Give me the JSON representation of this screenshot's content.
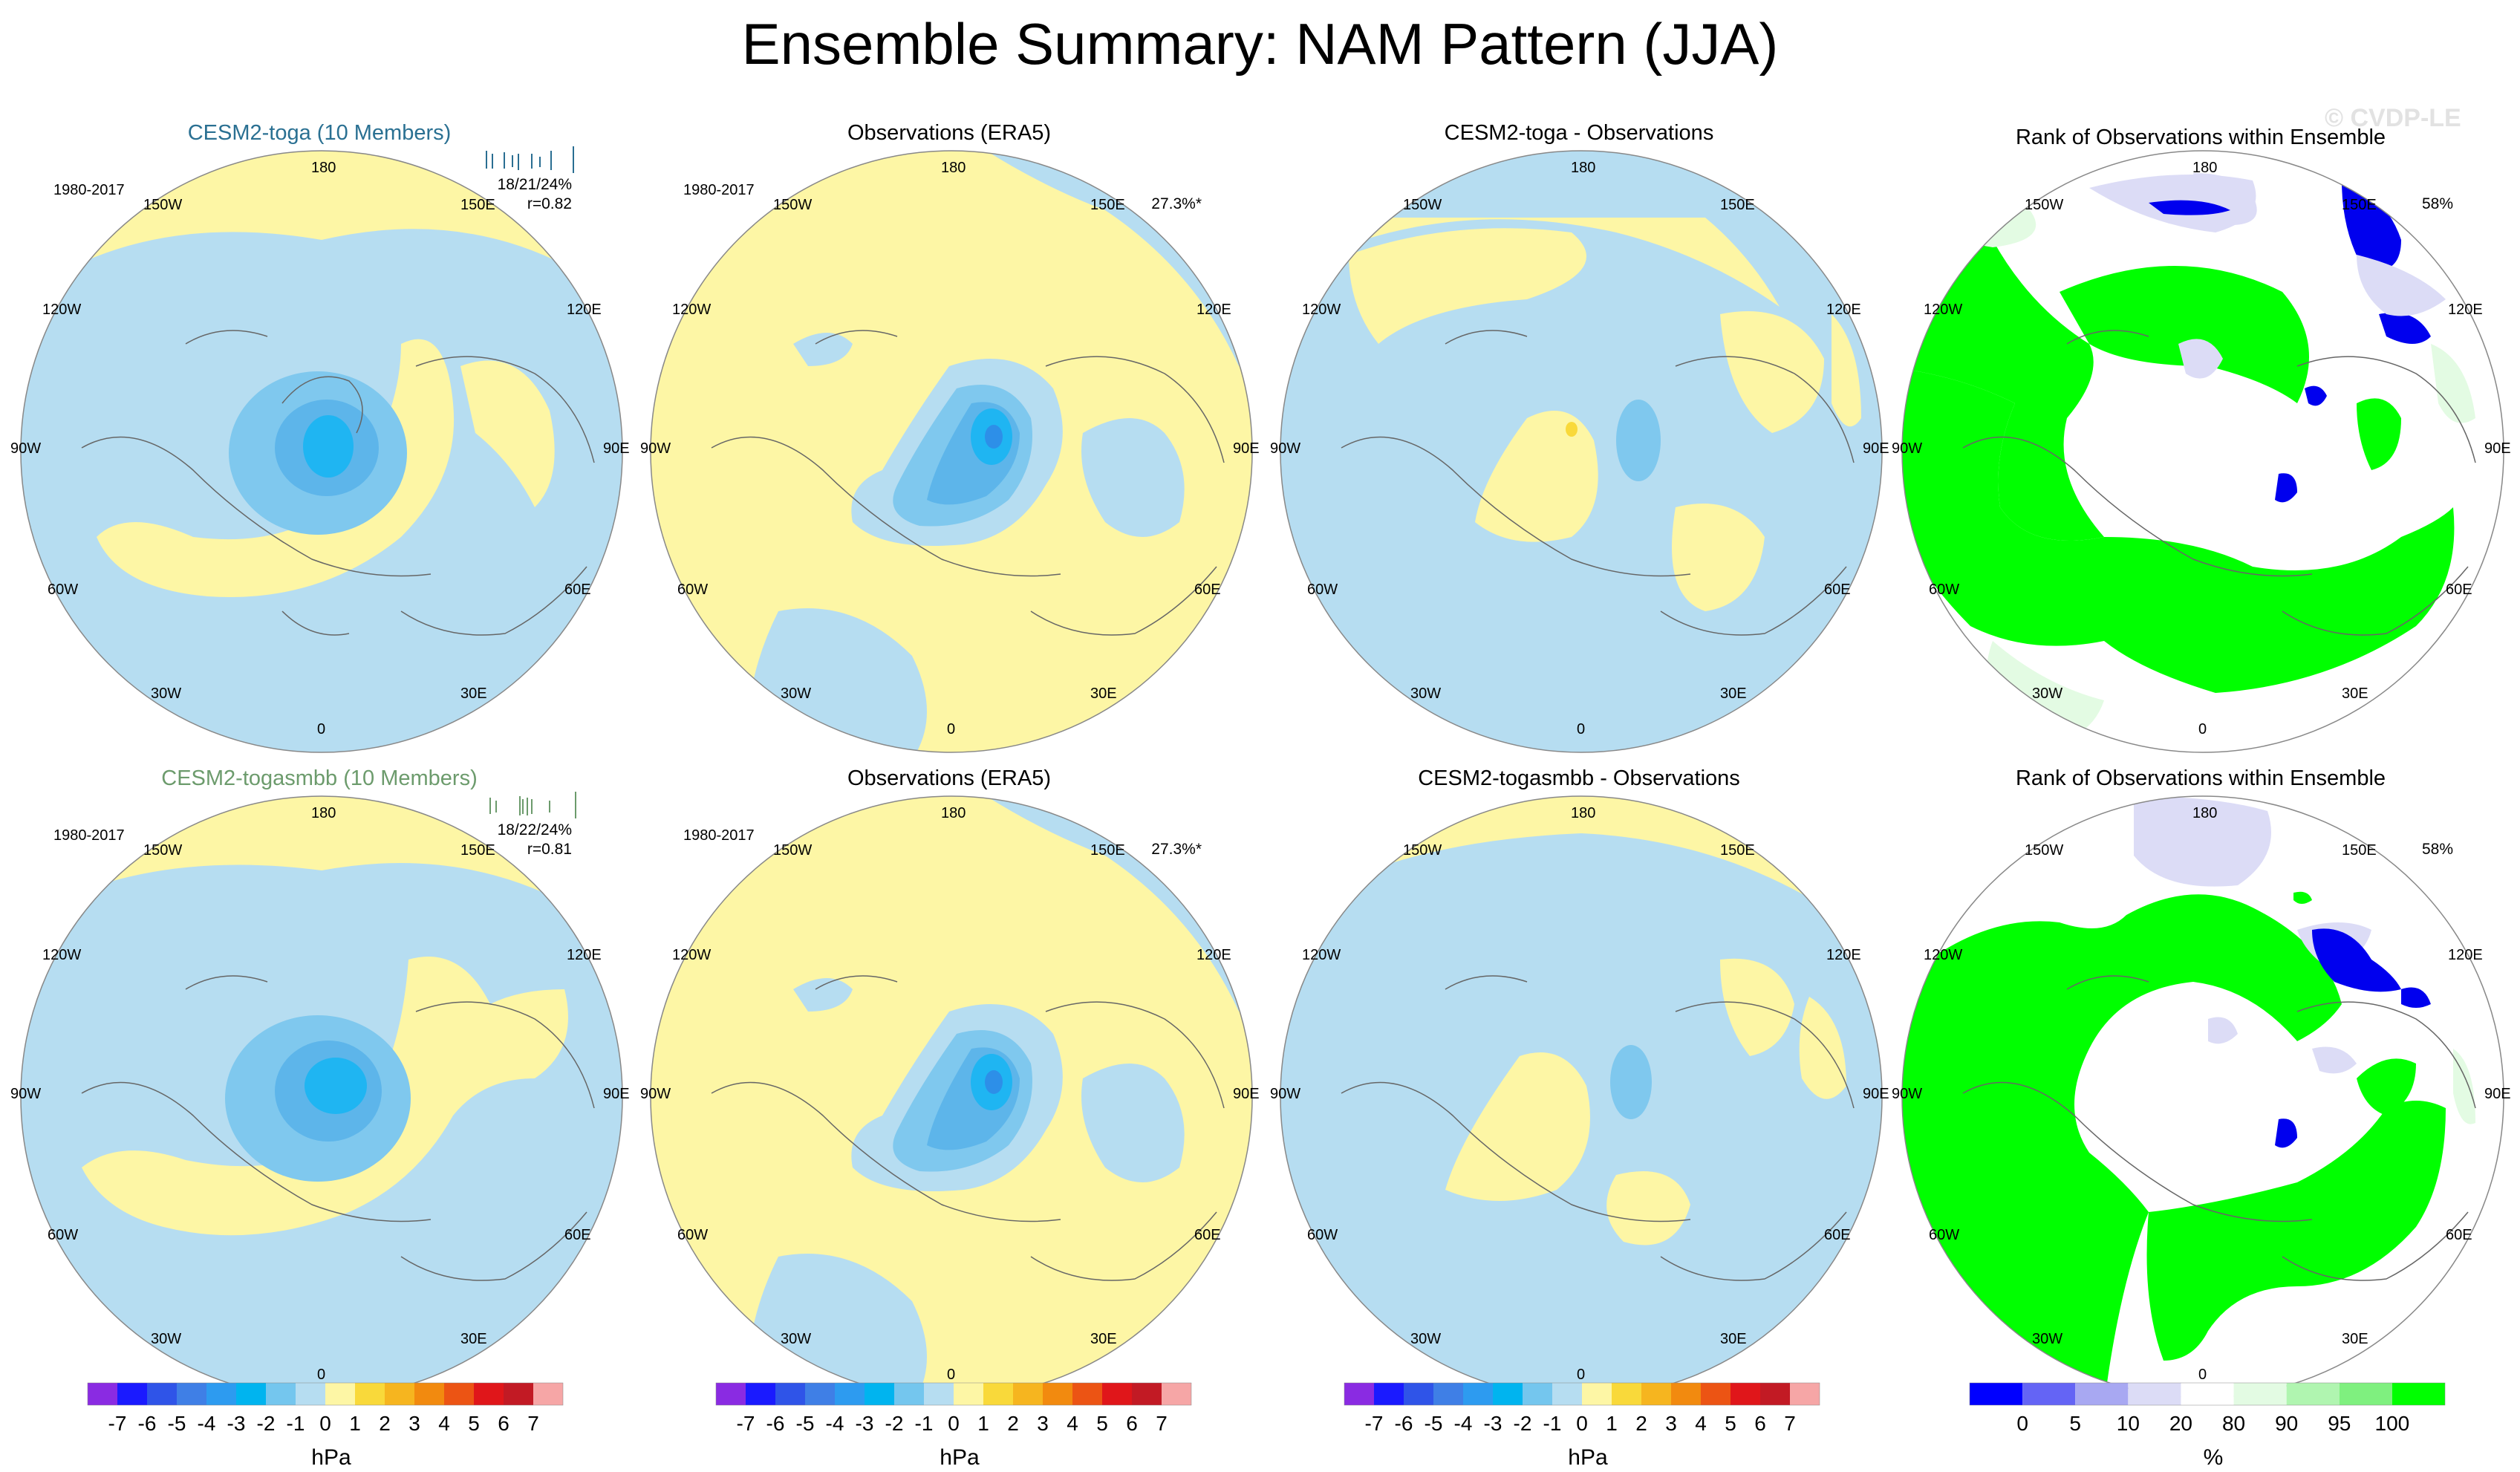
{
  "title": "Ensemble Summary: NAM Pattern (JJA)",
  "watermark": "© CVDP-LE",
  "rows": [
    {
      "model": {
        "title": "CESM2-toga (10 Members)",
        "period": "1980-2017",
        "stats_line1": "18/21/24%",
        "stats_line2": "r=0.82"
      },
      "obs": {
        "title": "Observations (ERA5)",
        "period": "1980-2017",
        "pct": "27.3%*"
      },
      "diff": {
        "title": "CESM2-toga - Observations"
      },
      "rank": {
        "title": "Rank of Observations within Ensemble",
        "pct": "58%"
      }
    },
    {
      "model": {
        "title": "CESM2-togasmbb (10 Members)",
        "period": "1980-2017",
        "stats_line1": "18/22/24%",
        "stats_line2": "r=0.81"
      },
      "obs": {
        "title": "Observations (ERA5)",
        "period": "1980-2017",
        "pct": "27.3%*"
      },
      "diff": {
        "title": "CESM2-togasmbb - Observations"
      },
      "rank": {
        "title": "Rank of Observations within Ensemble",
        "pct": "58%"
      }
    }
  ],
  "longitude_labels": {
    "top": "180",
    "bottom": "0",
    "w150": "150W",
    "w120": "120W",
    "w90": "90W",
    "w60": "60W",
    "w30": "30W",
    "e150": "150E",
    "e120": "120E",
    "e90": "90E",
    "e60": "60E",
    "e30": "30E"
  },
  "colors": {
    "positive_fill": "#fdf6a5",
    "negative_fill": "#b6ddf1",
    "neg_level_1": "#7fc8ee",
    "neg_level_2": "#5db5ea",
    "neg_level_3": "#1fb5f2",
    "neg_level_4": "#2d8fe8",
    "rank_green": "#00ff00",
    "rank_light_green": "#e3fbe3",
    "rank_blue": "#0000ee",
    "rank_lavender": "#dcdcf6"
  },
  "colorbar_hpa": {
    "units": "hPa",
    "labels": [
      "-7",
      "-6",
      "-5",
      "-4",
      "-3",
      "-2",
      "-1",
      "0",
      "1",
      "2",
      "3",
      "4",
      "5",
      "6",
      "7"
    ],
    "colors": [
      "#8a2be2",
      "#1a1aff",
      "#2f54e8",
      "#3f7fe6",
      "#2d9bf0",
      "#00b4ef",
      "#74c6ee",
      "#b6ddf1",
      "#fdf6a5",
      "#f9d93a",
      "#f6b51f",
      "#f28a0f",
      "#ec5414",
      "#e0161a",
      "#c21a24",
      "#f6a6a6"
    ]
  },
  "colorbar_rank": {
    "units": "%",
    "labels": [
      "0",
      "5",
      "10",
      "20",
      "80",
      "90",
      "95",
      "100"
    ],
    "colors": [
      "#0000ff",
      "#6464f5",
      "#a8a8f2",
      "#dcdcf6",
      "#ffffff",
      "#e3fbe3",
      "#b0f5b0",
      "#7ff07f",
      "#00ff00"
    ]
  }
}
